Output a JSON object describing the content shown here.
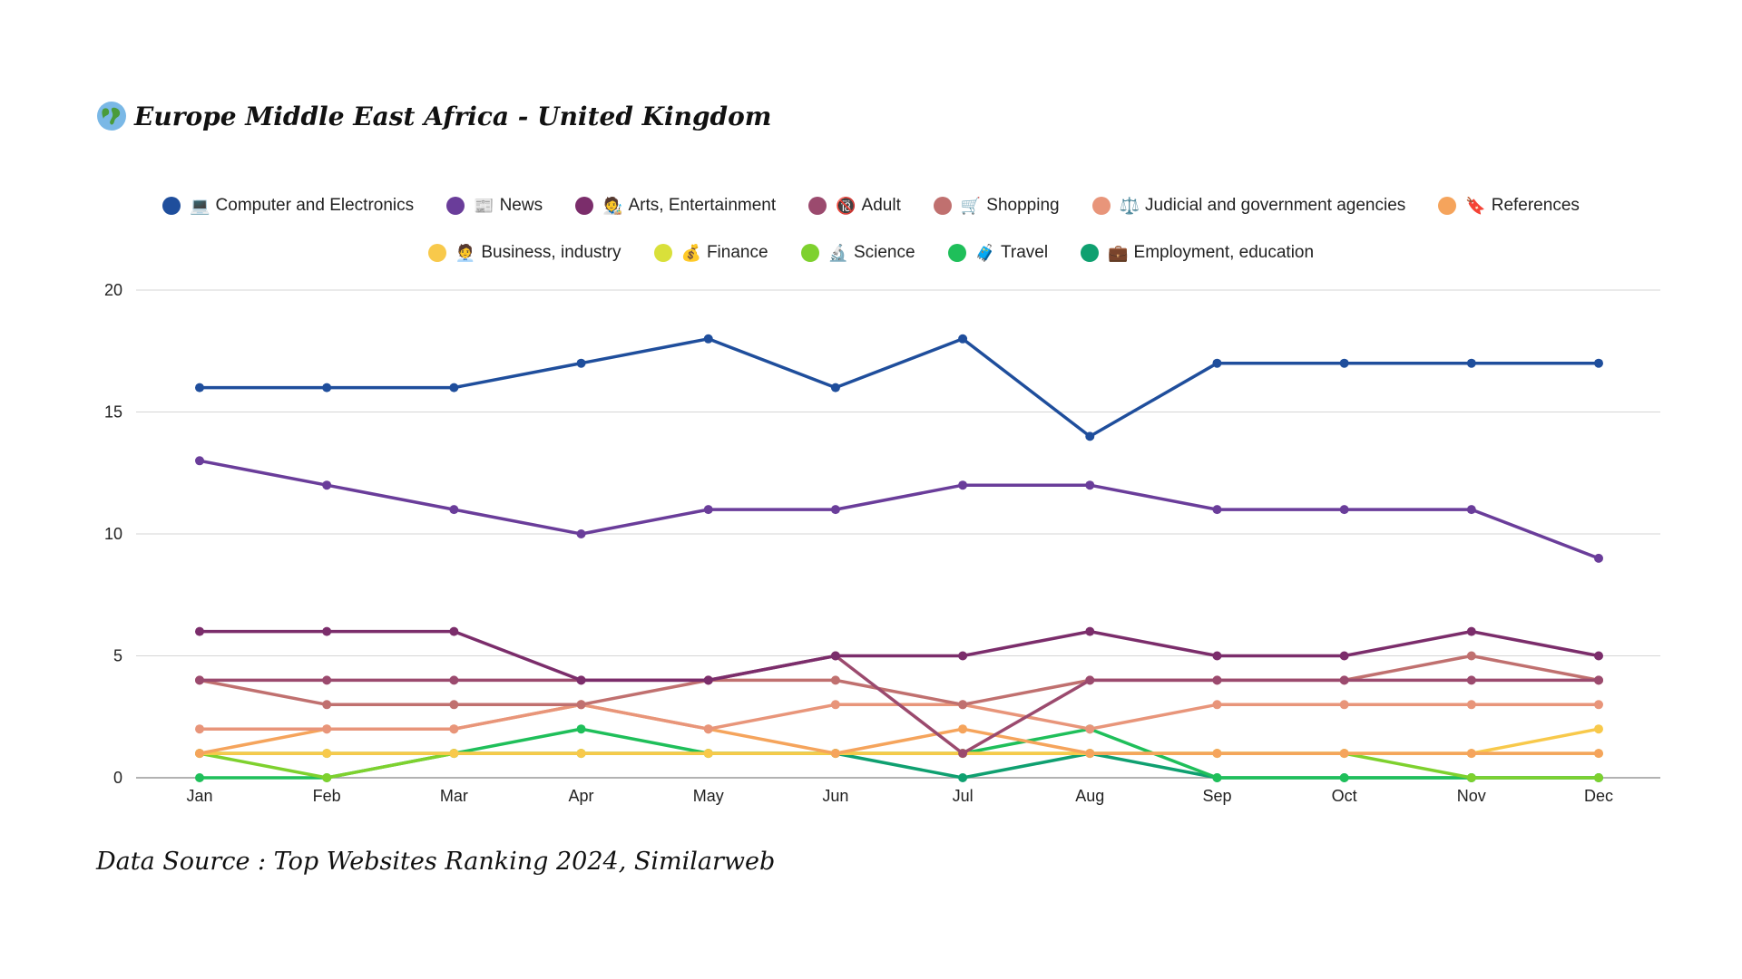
{
  "title": {
    "icon": "globe-icon",
    "text": "Europe Middle East Africa - United Kingdom"
  },
  "source": "Data Source : Top Websites Ranking 2024, Similarweb",
  "chart_data": {
    "type": "line",
    "title": "Europe Middle East Africa - United Kingdom",
    "xlabel": "",
    "ylabel": "",
    "categories": [
      "Jan",
      "Feb",
      "Mar",
      "Apr",
      "May",
      "Jun",
      "Jul",
      "Aug",
      "Sep",
      "Oct",
      "Nov",
      "Dec"
    ],
    "ylim": [
      0,
      20
    ],
    "yticks": [
      0,
      5,
      10,
      15,
      20
    ],
    "grid": true,
    "legend_position": "top",
    "series": [
      {
        "name": "Computer and Electronics",
        "emoji": "💻",
        "color": "#1f4e9c",
        "values": [
          16,
          16,
          16,
          17,
          18,
          16,
          18,
          14,
          17,
          17,
          17,
          17
        ]
      },
      {
        "name": "News",
        "emoji": "📰",
        "color": "#6a3d9a",
        "values": [
          13,
          12,
          11,
          10,
          11,
          11,
          12,
          12,
          11,
          11,
          11,
          9
        ]
      },
      {
        "name": "Arts, Entertainment",
        "emoji": "🧑‍🎨",
        "color": "#7b2d6b",
        "values": [
          6,
          6,
          6,
          4,
          4,
          5,
          5,
          6,
          5,
          5,
          6,
          5
        ]
      },
      {
        "name": "Adult",
        "emoji": "🔞",
        "color": "#9b4a6e",
        "values": [
          4,
          4,
          4,
          4,
          4,
          5,
          1,
          4,
          4,
          4,
          4,
          4
        ]
      },
      {
        "name": "Shopping",
        "emoji": "🛒",
        "color": "#c0706f",
        "values": [
          4,
          3,
          3,
          3,
          4,
          4,
          3,
          4,
          4,
          4,
          5,
          4
        ]
      },
      {
        "name": "Judicial and government agencies",
        "emoji": "⚖️",
        "color": "#e8957a",
        "values": [
          2,
          2,
          2,
          3,
          2,
          3,
          3,
          2,
          3,
          3,
          3,
          3
        ]
      },
      {
        "name": "References",
        "emoji": "🔖",
        "color": "#f5a45c",
        "values": [
          1,
          2,
          2,
          3,
          2,
          1,
          2,
          1,
          1,
          1,
          1,
          1
        ]
      },
      {
        "name": "Business, industry",
        "emoji": "🧑‍💼",
        "color": "#f8c94b",
        "values": [
          1,
          1,
          1,
          1,
          1,
          1,
          1,
          1,
          1,
          1,
          1,
          2
        ]
      },
      {
        "name": "Finance",
        "emoji": "💰",
        "color": "#d9e03a",
        "values": [
          1,
          1,
          1,
          1,
          1,
          1,
          1,
          1,
          1,
          1,
          1,
          1
        ]
      },
      {
        "name": "Science",
        "emoji": "🔬",
        "color": "#7ed12e",
        "values": [
          1,
          0,
          1,
          1,
          1,
          1,
          1,
          1,
          1,
          1,
          0,
          0
        ]
      },
      {
        "name": "Travel",
        "emoji": "🧳",
        "color": "#1fbf5a",
        "values": [
          0,
          0,
          1,
          2,
          1,
          1,
          1,
          2,
          0,
          0,
          0,
          0
        ]
      },
      {
        "name": "Employment, education",
        "emoji": "💼",
        "color": "#0fa070",
        "values": [
          1,
          1,
          1,
          1,
          1,
          1,
          0,
          1,
          0,
          0,
          0,
          0
        ]
      }
    ]
  }
}
